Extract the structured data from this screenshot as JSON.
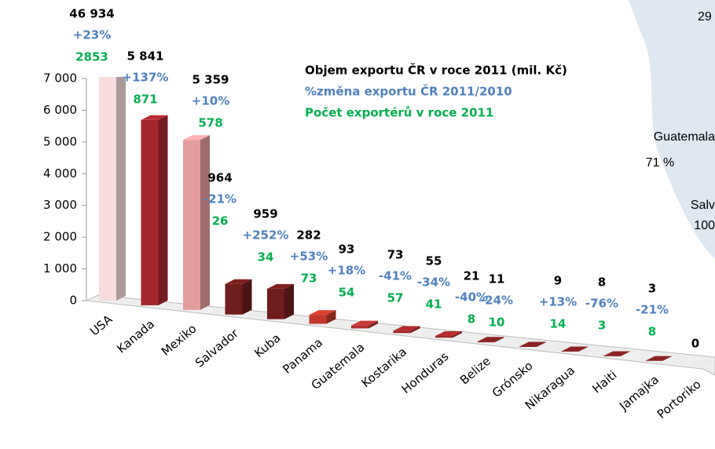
{
  "chart_data": {
    "type": "bar3d",
    "categories": [
      "USA",
      "Kanada",
      "Mexiko",
      "Salvador",
      "Kuba",
      "Panama",
      "Guatemala",
      "Kostarika",
      "Honduras",
      "Belize",
      "Grónsko",
      "Nikaragua",
      "Haiti",
      "Jamajka",
      "Portoriko"
    ],
    "values": [
      46934,
      5841,
      5359,
      964,
      959,
      282,
      93,
      73,
      55,
      21,
      11,
      9,
      8,
      3,
      0
    ],
    "value_labels": [
      "46 934",
      "5 841",
      "5 359",
      "964",
      "959",
      "282",
      "93",
      "73",
      "55",
      "21",
      "11",
      "9",
      "8",
      "3",
      "0"
    ],
    "colors": [
      "#f6dcdc",
      "#a3282c",
      "#e39c9c",
      "#6e1c1c",
      "#6e1c1c",
      "#c0392b",
      "#b03030",
      "#a02828",
      "#a02828",
      "#7a1e1e",
      "#7a1e1e",
      "#7a1e1e",
      "#7a1e1e",
      "#7a1e1e",
      "#cccccc"
    ],
    "change": {
      "values": [
        23,
        137,
        10,
        -21,
        252,
        53,
        18,
        -41,
        -34,
        -40,
        -24,
        13,
        -76,
        -21,
        null
      ],
      "value_labels": [
        "+23%",
        "+137%",
        "+10%",
        "-21%",
        "+252%",
        "+53%",
        "+18%",
        "-41%",
        "-34%",
        "-40%",
        "-24%",
        "+13%",
        "-76%",
        "-21%",
        null
      ]
    },
    "exporters": [
      2853,
      871,
      578,
      26,
      34,
      73,
      54,
      57,
      41,
      8,
      10,
      14,
      3,
      8,
      null
    ],
    "legend": [
      "Objem exportu ČR v roce 2011 (mil. Kč)",
      "%změna exportu ČR 2011/2010",
      "Počet exportérů v roce 2011"
    ],
    "ylim": [
      0,
      7000
    ],
    "yticks": [
      0,
      {
        "value": 1000,
        "label": "1 000"
      },
      {
        "value": 2000,
        "label": "2 000"
      },
      {
        "value": 3000,
        "label": "3 000"
      },
      {
        "value": 4000,
        "label": "4 000"
      },
      {
        "value": 5000,
        "label": "5 000"
      },
      {
        "value": 6000,
        "label": "6 000"
      },
      {
        "value": 7000,
        "label": "7 000"
      }
    ],
    "background_labels": [
      "29",
      "Guatemala",
      "71 %",
      "Salv",
      "100"
    ]
  }
}
